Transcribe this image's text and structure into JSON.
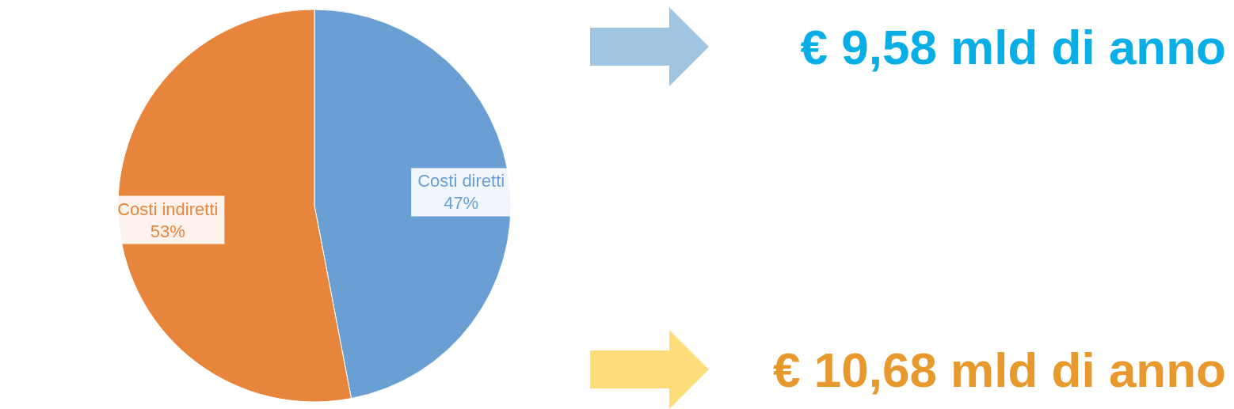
{
  "chart_data": {
    "type": "pie",
    "categories": [
      "Costi diretti",
      "Costi indiretti"
    ],
    "values": [
      47,
      53
    ],
    "colors": [
      "#6a9fd4",
      "#e8853d"
    ],
    "value_labels": [
      "47%",
      "53%"
    ],
    "annotations": [
      "€ 9,58 mld di anno",
      "€ 10,68 mld di anno"
    ]
  }
}
